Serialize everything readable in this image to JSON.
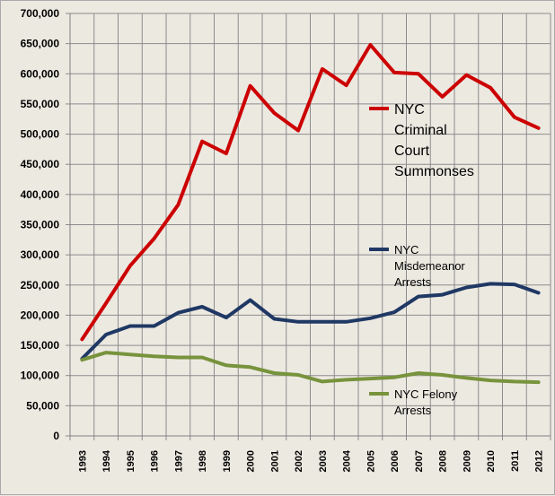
{
  "chart_data": {
    "type": "line",
    "title": "",
    "xlabel": "",
    "ylabel": "",
    "x": [
      "1993",
      "1994",
      "1995",
      "1996",
      "1997",
      "1998",
      "1999",
      "2000",
      "2001",
      "2002",
      "2003",
      "2004",
      "2005",
      "2006",
      "2007",
      "2008",
      "2009",
      "2010",
      "2011",
      "2012"
    ],
    "ylim": [
      0,
      700000
    ],
    "yticks": [
      "0",
      "50,000",
      "100,000",
      "150,000",
      "200,000",
      "250,000",
      "300,000",
      "350,000",
      "400,000",
      "450,000",
      "500,000",
      "550,000",
      "600,000",
      "650,000",
      "700,000"
    ],
    "grid": true,
    "legend": "inline labels",
    "series": [
      {
        "name": "NYC Criminal Court Summonses",
        "label_lines": [
          "NYC",
          "Criminal",
          "Court",
          "Summonses"
        ],
        "color": "#cc0000",
        "values": [
          160000,
          220000,
          282000,
          327000,
          383000,
          488000,
          468000,
          580000,
          535000,
          506000,
          608000,
          581000,
          648000,
          602000,
          600000,
          562000,
          598000,
          577000,
          528000,
          510000
        ]
      },
      {
        "name": "NYC Misdemeanor Arrests",
        "label_lines": [
          "NYC",
          "Misdemeanor",
          "Arrests"
        ],
        "color": "#1f3864",
        "values": [
          128000,
          168000,
          182000,
          182000,
          204000,
          214000,
          196000,
          225000,
          194000,
          189000,
          189000,
          189000,
          195000,
          205000,
          231000,
          234000,
          246000,
          252000,
          251000,
          237000
        ]
      },
      {
        "name": "NYC Felony Arrests",
        "label_lines": [
          "NYC Felony",
          "Arrests"
        ],
        "color": "#77933c",
        "values": [
          126000,
          138000,
          135000,
          132000,
          130000,
          130000,
          117000,
          114000,
          104000,
          101000,
          90000,
          93000,
          95000,
          97000,
          104000,
          101000,
          96000,
          92000,
          90000,
          89000
        ]
      }
    ]
  }
}
